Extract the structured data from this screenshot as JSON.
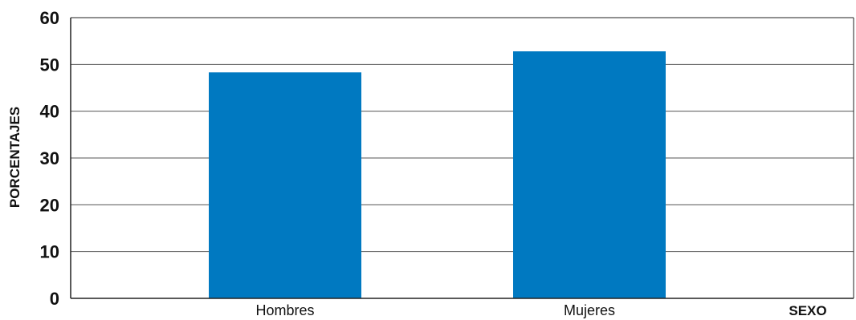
{
  "chart_data": {
    "type": "bar",
    "categories": [
      "Hombres",
      "Mujeres"
    ],
    "values": [
      48.3,
      52.8
    ],
    "title": "",
    "xlabel": "SEXO",
    "ylabel": "PORCENTAJES",
    "ylim": [
      0,
      60
    ],
    "yticks": [
      "0",
      "10",
      "20",
      "30",
      "40",
      "50",
      "60"
    ],
    "grid": true,
    "legend": "none",
    "colors": {
      "bar": "#0079c1",
      "grid": "#555555",
      "axis": "#222222",
      "text": "#111111"
    }
  }
}
